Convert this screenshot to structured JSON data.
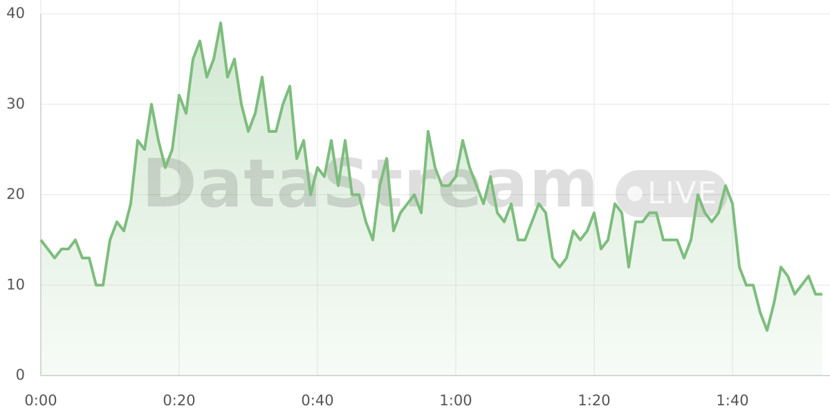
{
  "chart_data": {
    "type": "line",
    "x": [
      0,
      1,
      2,
      3,
      4,
      5,
      6,
      7,
      8,
      9,
      10,
      11,
      12,
      13,
      14,
      15,
      16,
      17,
      18,
      19,
      20,
      21,
      22,
      23,
      24,
      25,
      26,
      27,
      28,
      29,
      30,
      31,
      32,
      33,
      34,
      35,
      36,
      37,
      38,
      39,
      40,
      41,
      42,
      43,
      44,
      45,
      46,
      47,
      48,
      49,
      50,
      51,
      52,
      53,
      54,
      55,
      56,
      57,
      58,
      59,
      60,
      61,
      62,
      63,
      64,
      65,
      66,
      67,
      68,
      69,
      70,
      71,
      72,
      73,
      74,
      75,
      76,
      77,
      78,
      79,
      80,
      81,
      82,
      83,
      84,
      85,
      86,
      87,
      88,
      89,
      90,
      91,
      92,
      93,
      94,
      95,
      96,
      97,
      98,
      99,
      100,
      101,
      102,
      103,
      104,
      105,
      106,
      107,
      108,
      109,
      110,
      111,
      112,
      113
    ],
    "series": [
      {
        "color": "#7dbd7d",
        "values": [
          15,
          14,
          13,
          14,
          14,
          15,
          13,
          13,
          10,
          10,
          15,
          17,
          16,
          19,
          26,
          25,
          30,
          26,
          23,
          25,
          31,
          29,
          35,
          37,
          33,
          35,
          39,
          33,
          35,
          30,
          27,
          29,
          33,
          27,
          27,
          30,
          32,
          24,
          26,
          20,
          23,
          22,
          26,
          21,
          26,
          20,
          20,
          17,
          15,
          21,
          24,
          16,
          18,
          19,
          20,
          18,
          27,
          23,
          21,
          21,
          22,
          26,
          23,
          21,
          19,
          22,
          18,
          17,
          19,
          15,
          15,
          17,
          19,
          18,
          13,
          12,
          13,
          16,
          15,
          16,
          18,
          14,
          15,
          19,
          18,
          12,
          17,
          17,
          18,
          18,
          15,
          15,
          15,
          13,
          15,
          20,
          18,
          17,
          18,
          21,
          19,
          12,
          10,
          10,
          7,
          5,
          8,
          12,
          11,
          9,
          10,
          11,
          9,
          9
        ]
      }
    ],
    "xlim": [
      0,
      113
    ],
    "xticks": [
      {
        "value": 0,
        "label": "0:00"
      },
      {
        "value": 20,
        "label": "0:20"
      },
      {
        "value": 40,
        "label": "0:40"
      },
      {
        "value": 60,
        "label": "1:00"
      },
      {
        "value": 80,
        "label": "1:20"
      },
      {
        "value": 100,
        "label": "1:40"
      }
    ],
    "ylim": [
      0,
      40
    ],
    "yticks": [
      0,
      10,
      20,
      30,
      40
    ],
    "grid": true,
    "watermark": {
      "text": "DataStream",
      "badge": "LIVE"
    }
  }
}
